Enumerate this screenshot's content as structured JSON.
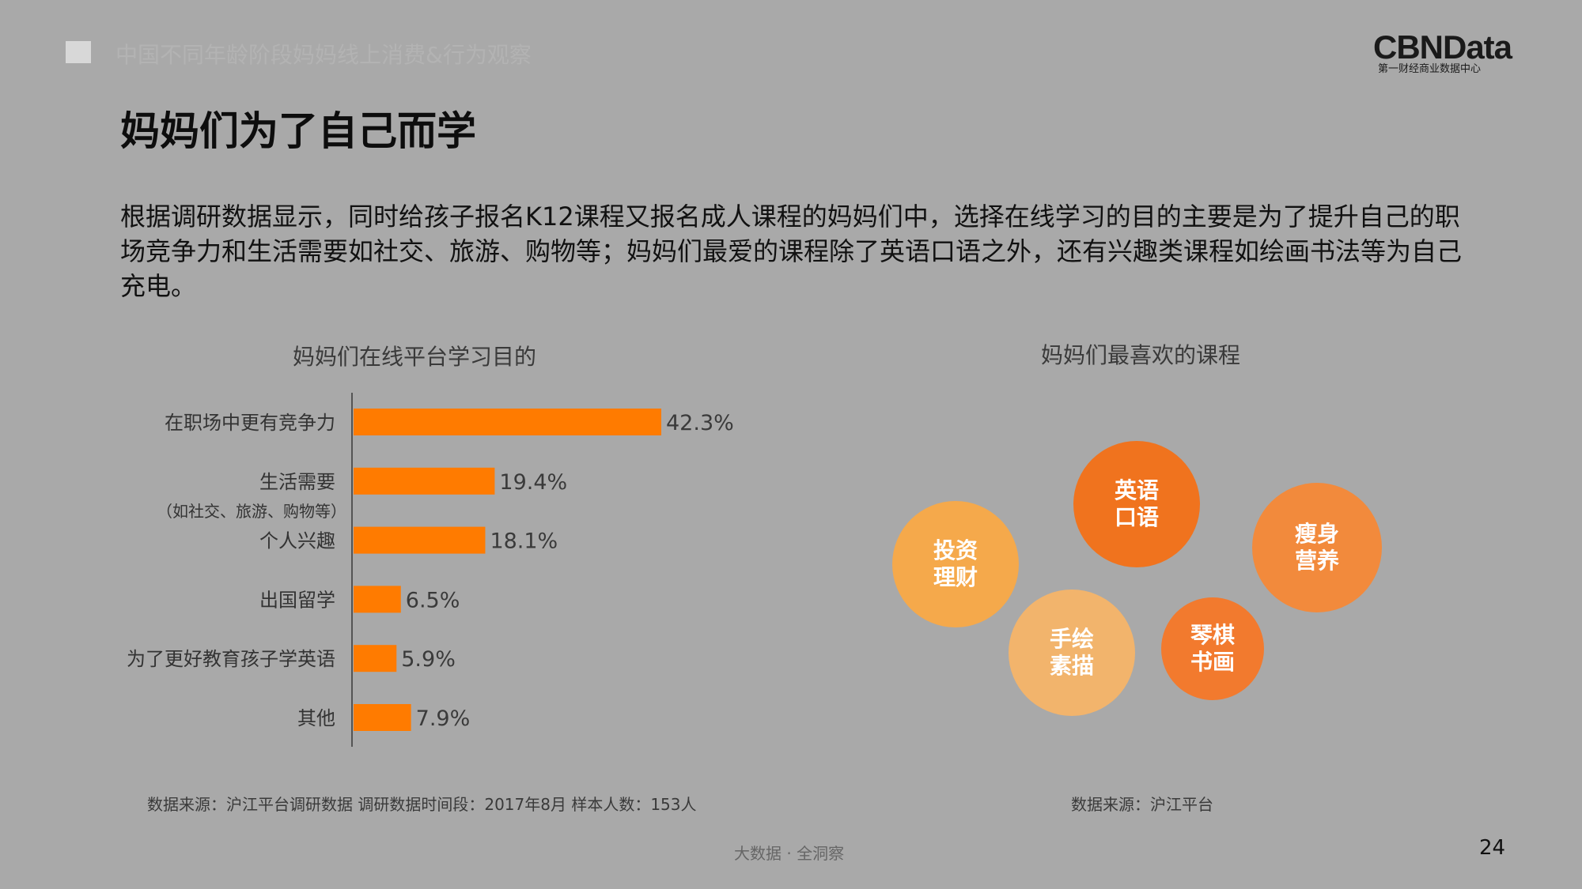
{
  "header": {
    "section_title": "中国不同年龄阶段妈妈线上消费&行为观察",
    "logo_main": "CBNData",
    "logo_sub": "第一财经商业数据中心"
  },
  "page_title": "妈妈们为了自己而学",
  "intro_text": "根据调研数据显示，同时给孩子报名K12课程又报名成人课程的妈妈们中，选择在线学习的目的主要是为了提升自己的职场竞争力和生活需要如社交、旅游、购物等；妈妈们最爱的课程除了英语口语之外，还有兴趣类课程如绘画书法等为自己充电。",
  "colors": {
    "bar": "#ff7b00",
    "axis": "#555555"
  },
  "chart_data": [
    {
      "type": "bar",
      "orientation": "horizontal",
      "title": "妈妈们在线平台学习目的",
      "categories": [
        "在职场中更有竞争力",
        "生活需要",
        "个人兴趣",
        "出国留学",
        "为了更好教育孩子学英语",
        "其他"
      ],
      "category_notes": [
        "",
        "（如社交、旅游、购物等）",
        "",
        "",
        "",
        ""
      ],
      "values": [
        42.3,
        19.4,
        18.1,
        6.5,
        5.9,
        7.9
      ],
      "value_labels": [
        "42.3%",
        "19.4%",
        "18.1%",
        "6.5%",
        "5.9%",
        "7.9%"
      ],
      "unit": "%",
      "xlim": [
        0,
        45
      ],
      "grid": false,
      "source": "数据来源：沪江平台调研数据  调研数据时间段：2017年8月  样本人数：153人"
    },
    {
      "type": "bubble",
      "title": "妈妈们最喜欢的课程",
      "items": [
        {
          "label": "英语口语",
          "color": "#f0731e"
        },
        {
          "label": "瘦身营养",
          "color": "#f28a3c"
        },
        {
          "label": "投资理财",
          "color": "#f5a94b"
        },
        {
          "label": "琴棋书画",
          "color": "#f27a2e"
        },
        {
          "label": "手绘素描",
          "color": "#f2b46c"
        }
      ],
      "source": "数据来源：沪江平台"
    }
  ],
  "footer": {
    "text": "大数据 · 全洞察",
    "page_number": "24"
  }
}
